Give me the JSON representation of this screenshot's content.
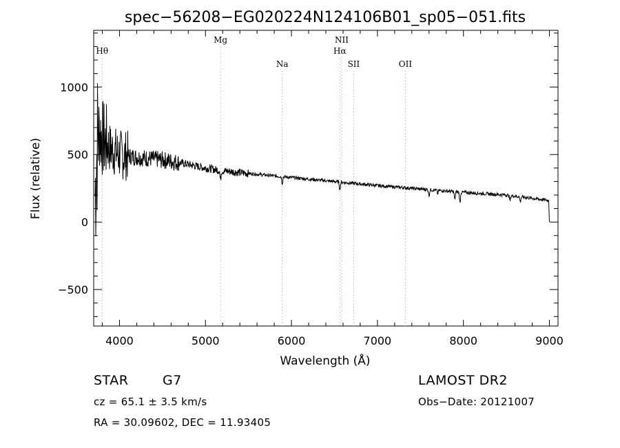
{
  "chart_data": {
    "type": "line",
    "title": "spec−56208−EG020224N124106B01_sp05−051.fits",
    "xlabel": "Wavelength (Å)",
    "ylabel": "Flux (relative)",
    "xlim": [
      3700,
      9100
    ],
    "ylim": [
      -770,
      1420
    ],
    "x_ticks": [
      4000,
      5000,
      6000,
      7000,
      8000,
      9000
    ],
    "x_tick_labels": [
      "4000",
      "5000",
      "6000",
      "7000",
      "8000",
      "9000"
    ],
    "y_ticks": [
      -500,
      0,
      500,
      1000
    ],
    "y_tick_labels": [
      "−500",
      "0",
      "500",
      "1000"
    ],
    "grid": false,
    "line_color": "#000000",
    "line_marker_color": "#e8a0a0",
    "spectral_lines": [
      {
        "name": "Hθ",
        "wavelength": 3798,
        "row": 1
      },
      {
        "name": "Mg",
        "wavelength": 5175,
        "row": 0
      },
      {
        "name": "Na",
        "wavelength": 5893,
        "row": 2
      },
      {
        "name": "NII",
        "wavelength": 6584,
        "row": 0
      },
      {
        "name": "Hα",
        "wavelength": 6563,
        "row": 1
      },
      {
        "name": "SII",
        "wavelength": 6724,
        "row": 2
      },
      {
        "name": "OII",
        "wavelength": 7325,
        "row": 2
      }
    ],
    "series": [
      {
        "name": "flux",
        "continuum_anchors": [
          [
            3716,
            200
          ],
          [
            3750,
            700
          ],
          [
            3800,
            620
          ],
          [
            3900,
            540
          ],
          [
            4000,
            500
          ],
          [
            4200,
            480
          ],
          [
            4500,
            460
          ],
          [
            4700,
            440
          ],
          [
            5000,
            400
          ],
          [
            5200,
            380
          ],
          [
            5500,
            360
          ],
          [
            6000,
            330
          ],
          [
            6500,
            300
          ],
          [
            7000,
            270
          ],
          [
            7500,
            245
          ],
          [
            8000,
            220
          ],
          [
            8500,
            200
          ],
          [
            9000,
            160
          ]
        ],
        "absorption_features": [
          [
            5175,
            70
          ],
          [
            5893,
            50
          ],
          [
            6563,
            55
          ],
          [
            7600,
            45
          ],
          [
            7700,
            25
          ],
          [
            7900,
            60
          ],
          [
            7960,
            80
          ],
          [
            8542,
            40
          ],
          [
            8662,
            35
          ]
        ]
      }
    ]
  },
  "info": {
    "object_class": "STAR",
    "subclass": "G7",
    "cz": "cz = 65.1 ± 3.5 km/s",
    "coords": "RA =  30.09602, DEC =  11.93405",
    "survey": "LAMOST DR2",
    "obs_date": "Obs−Date: 20121007"
  }
}
